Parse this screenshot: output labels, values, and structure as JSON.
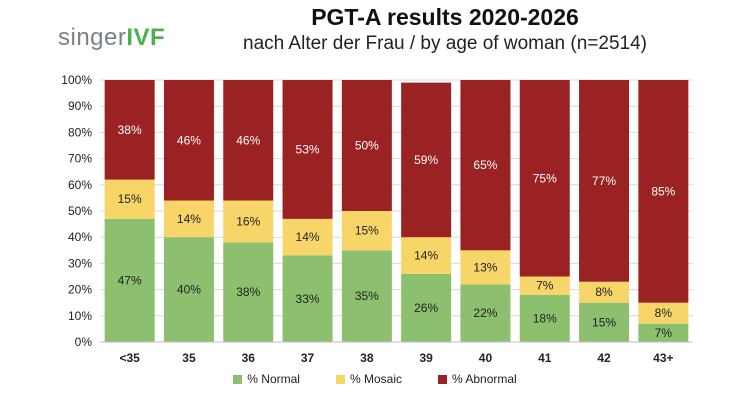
{
  "logo": {
    "text_main": "singer",
    "text_brand": "IVF"
  },
  "chart_data": {
    "type": "bar",
    "stacked": true,
    "title": "PGT-A results 2020-2026",
    "subtitle": "nach Alter der Frau / by age of woman (n=2514)",
    "categories": [
      "<35",
      "35",
      "36",
      "37",
      "38",
      "39",
      "40",
      "41",
      "42",
      "43+"
    ],
    "series": [
      {
        "name": "% Normal",
        "color": "#8cbf6e",
        "values": [
          47,
          40,
          38,
          33,
          35,
          26,
          22,
          18,
          15,
          7
        ],
        "labels": [
          "47%",
          "40%",
          "38%",
          "33%",
          "35%",
          "26%",
          "22%",
          "18%",
          "15%",
          "7%"
        ]
      },
      {
        "name": "% Mosaic",
        "color": "#f7d568",
        "values": [
          15,
          14,
          16,
          14,
          15,
          14,
          13,
          7,
          8,
          8
        ],
        "labels": [
          "15%",
          "14%",
          "16%",
          "14%",
          "15%",
          "14%",
          "13%",
          "7%",
          "8%",
          "8%"
        ]
      },
      {
        "name": "% Abnormal",
        "color": "#9b2222",
        "values": [
          38,
          46,
          46,
          53,
          50,
          59,
          65,
          75,
          77,
          85
        ],
        "labels": [
          "38%",
          "46%",
          "46%",
          "53%",
          "50%",
          "59%",
          "65%",
          "75%",
          "77%",
          "85%"
        ]
      }
    ],
    "yticks": [
      "0%",
      "10%",
      "20%",
      "30%",
      "40%",
      "50%",
      "60%",
      "70%",
      "80%",
      "90%",
      "100%"
    ],
    "ylim": [
      0,
      100
    ],
    "grid": true,
    "legend_position": "bottom"
  }
}
